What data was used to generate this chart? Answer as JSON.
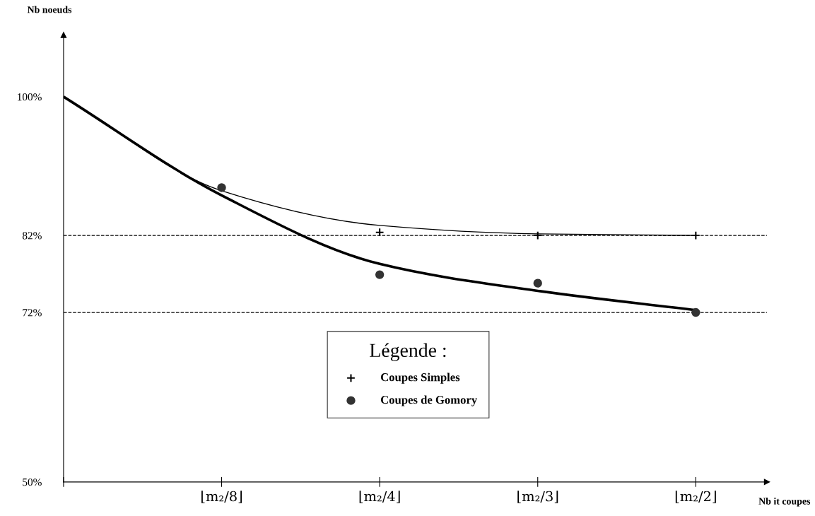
{
  "chart_data": {
    "type": "scatter",
    "xlabel": "Nb it coupes",
    "ylabel": "Nb noeuds",
    "categories": [
      null,
      "⌊m₂/8⌋",
      "⌊m₂/4⌋",
      "⌊m₂/3⌋",
      "⌊m₂/2⌋"
    ],
    "ylim": [
      50,
      108
    ],
    "yticks": [
      {
        "value": 50,
        "label": "50%"
      },
      {
        "value": 72,
        "label": "72%"
      },
      {
        "value": 82,
        "label": "82%"
      },
      {
        "value": 100,
        "label": "100%"
      }
    ],
    "series": [
      {
        "name": "Coupes Simples",
        "marker": "cross",
        "color": "#000000",
        "values": [
          null,
          null,
          82.4,
          82,
          82
        ]
      },
      {
        "name": "Coupes de Gomory",
        "marker": "circle",
        "color": "#333333",
        "values": [
          null,
          88.2,
          76.9,
          75.8,
          72
        ]
      },
      {
        "type": "line",
        "color": "#000000",
        "values": [
          100,
          87.8,
          83.3,
          82.2,
          82
        ]
      },
      {
        "type": "line",
        "color": "#000000",
        "values": [
          100,
          87.2,
          78.3,
          74.8,
          72.3
        ]
      }
    ],
    "ref_lines": [
      {
        "axis": "y",
        "value": 82,
        "line_style": "dashed",
        "color": "#000000"
      },
      {
        "axis": "y",
        "value": 72,
        "line_style": "dashed",
        "color": "#000000"
      }
    ],
    "legend": "bottom",
    "legend_title": "Légende :",
    "grid": false
  }
}
